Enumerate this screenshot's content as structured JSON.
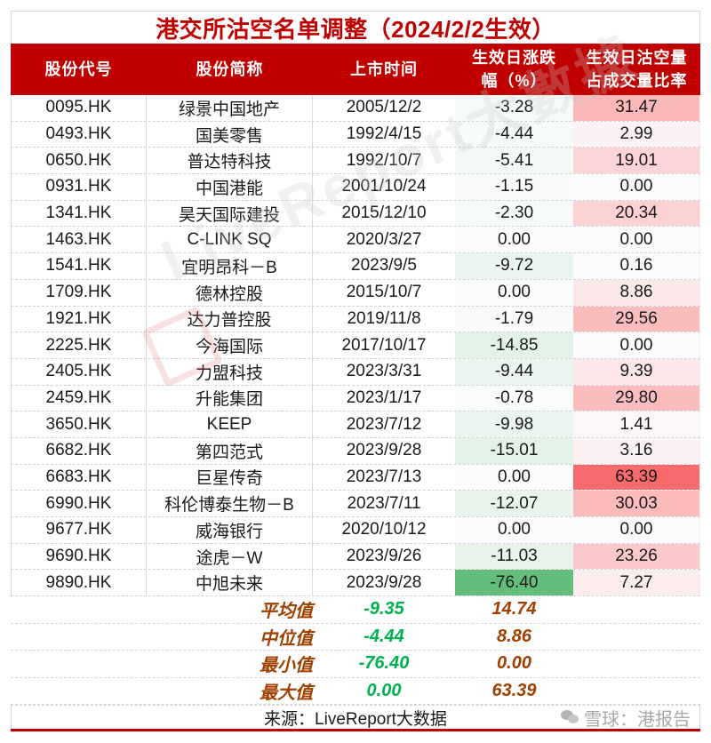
{
  "title": "港交所沽空名单调整（2024/2/2生效）",
  "header": {
    "code": "股份代号",
    "name": "股份简称",
    "listing_date": "上市时间",
    "change_pct": "生效日涨跌\n幅（%）",
    "short_ratio": "生效日沽空量\n占成交量比率"
  },
  "rows": [
    {
      "code": "0095.HK",
      "name": "绿景中国地产",
      "date": "2005/12/2",
      "change": "-3.28",
      "ratio": "31.47",
      "change_bg": "#f6fbf8",
      "ratio_bg": "#fbb8b9"
    },
    {
      "code": "0493.HK",
      "name": "国美零售",
      "date": "1992/4/15",
      "change": "-4.44",
      "ratio": "2.99",
      "change_bg": "#f5fbf7",
      "ratio_bg": "#fcf2f3"
    },
    {
      "code": "0650.HK",
      "name": "普达特科技",
      "date": "1992/10/7",
      "change": "-5.41",
      "ratio": "19.01",
      "change_bg": "#f3faf5",
      "ratio_bg": "#fbd4d5"
    },
    {
      "code": "0931.HK",
      "name": "中国港能",
      "date": "2001/10/24",
      "change": "-1.15",
      "ratio": "0.00",
      "change_bg": "#f8fbfa",
      "ratio_bg": "#fbfbfd"
    },
    {
      "code": "1341.HK",
      "name": "昊天国际建投",
      "date": "2015/12/10",
      "change": "-2.30",
      "ratio": "20.34",
      "change_bg": "#f7fbf9",
      "ratio_bg": "#fbd1d2"
    },
    {
      "code": "1463.HK",
      "name": "C-LINK SQ",
      "date": "2020/3/27",
      "change": "0.00",
      "ratio": "0.00",
      "change_bg": "#fbfcfd",
      "ratio_bg": "#fbfbfd"
    },
    {
      "code": "1541.HK",
      "name": "宜明昂科－B",
      "date": "2023/9/5",
      "change": "-9.72",
      "ratio": "0.16",
      "change_bg": "#e9f5ee",
      "ratio_bg": "#fbfbfd"
    },
    {
      "code": "1709.HK",
      "name": "德林控股",
      "date": "2015/10/7",
      "change": "0.00",
      "ratio": "8.86",
      "change_bg": "#fbfcfd",
      "ratio_bg": "#fbe9ea"
    },
    {
      "code": "1921.HK",
      "name": "达力普控股",
      "date": "2019/11/8",
      "change": "-1.79",
      "ratio": "29.56",
      "change_bg": "#f8fbfa",
      "ratio_bg": "#fbbcbd"
    },
    {
      "code": "2225.HK",
      "name": "今海国际",
      "date": "2017/10/17",
      "change": "-14.85",
      "ratio": "0.00",
      "change_bg": "#e2f2e8",
      "ratio_bg": "#fbfbfd"
    },
    {
      "code": "2405.HK",
      "name": "力盟科技",
      "date": "2023/3/31",
      "change": "-9.44",
      "ratio": "9.39",
      "change_bg": "#eaf5ef",
      "ratio_bg": "#fbe7e8"
    },
    {
      "code": "2459.HK",
      "name": "升能集团",
      "date": "2023/1/17",
      "change": "-0.78",
      "ratio": "29.80",
      "change_bg": "#f9fcfb",
      "ratio_bg": "#fbbcbd"
    },
    {
      "code": "3650.HK",
      "name": "KEEP",
      "date": "2023/7/12",
      "change": "-9.98",
      "ratio": "1.41",
      "change_bg": "#e9f5ee",
      "ratio_bg": "#fbf6f7"
    },
    {
      "code": "6682.HK",
      "name": "第四范式",
      "date": "2023/9/28",
      "change": "-15.01",
      "ratio": "3.16",
      "change_bg": "#e2f2e8",
      "ratio_bg": "#fcf2f3"
    },
    {
      "code": "6683.HK",
      "name": "巨星传奇",
      "date": "2023/7/13",
      "change": "0.00",
      "ratio": "63.39",
      "change_bg": "#fbfcfd",
      "ratio_bg": "#f86a6b"
    },
    {
      "code": "6990.HK",
      "name": "科伦博泰生物－B",
      "date": "2023/7/11",
      "change": "-12.07",
      "ratio": "30.03",
      "change_bg": "#e6f4eb",
      "ratio_bg": "#fbbbbc"
    },
    {
      "code": "9677.HK",
      "name": "威海银行",
      "date": "2020/10/12",
      "change": "0.00",
      "ratio": "0.00",
      "change_bg": "#fbfcfd",
      "ratio_bg": "#fbfbfd"
    },
    {
      "code": "9690.HK",
      "name": "途虎－W",
      "date": "2023/9/26",
      "change": "-11.03",
      "ratio": "23.26",
      "change_bg": "#e7f4ec",
      "ratio_bg": "#fbc9ca"
    },
    {
      "code": "9890.HK",
      "name": "中旭未来",
      "date": "2023/9/28",
      "change": "-76.40",
      "ratio": "7.27",
      "change_bg": "#63be7b",
      "ratio_bg": "#fbeced"
    }
  ],
  "summary": [
    {
      "label": "平均值",
      "change": "-9.35",
      "ratio": "14.74"
    },
    {
      "label": "中位值",
      "change": "-4.44",
      "ratio": "8.86"
    },
    {
      "label": "最小值",
      "change": "-76.40",
      "ratio": "0.00"
    },
    {
      "label": "最大值",
      "change": "0.00",
      "ratio": "63.39"
    }
  ],
  "source": "来源：LiveReport大数据",
  "watermarks": {
    "center": "LiveReport大數據",
    "corner": "雪球：港报告"
  },
  "colors": {
    "brand_red": "#c00000",
    "summary_label": "#a04000",
    "summary_green": "#00b050"
  }
}
